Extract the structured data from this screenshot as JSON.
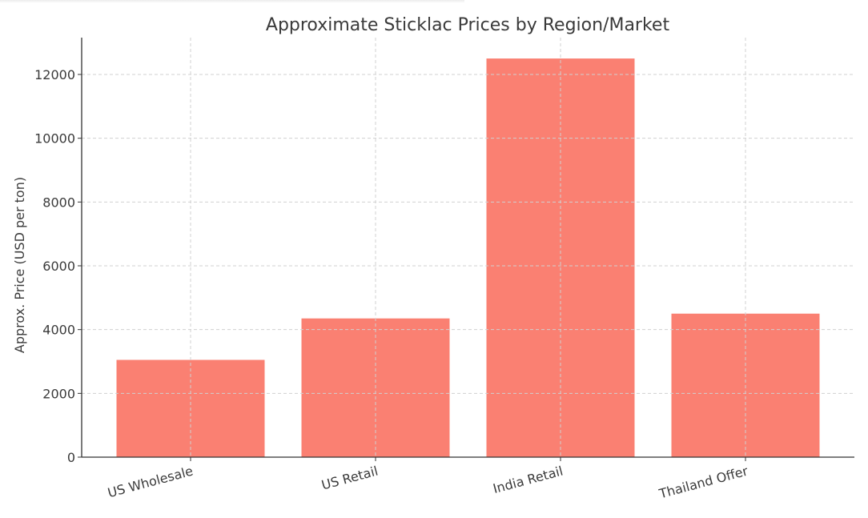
{
  "chart_data": {
    "type": "bar",
    "title": "Approximate Sticklac Prices by Region/Market",
    "xlabel": "",
    "ylabel": "Approx. Price (USD per ton)",
    "categories": [
      "US Wholesale",
      "US Retail",
      "India Retail",
      "Thailand Offer"
    ],
    "values": [
      3050,
      4350,
      12500,
      4500
    ],
    "ylim": [
      0,
      13100
    ],
    "yticks": [
      0,
      2000,
      4000,
      6000,
      8000,
      10000,
      12000
    ],
    "grid": true,
    "legend": null,
    "bar_color": "#fa8072",
    "xtick_rotation": -15
  }
}
